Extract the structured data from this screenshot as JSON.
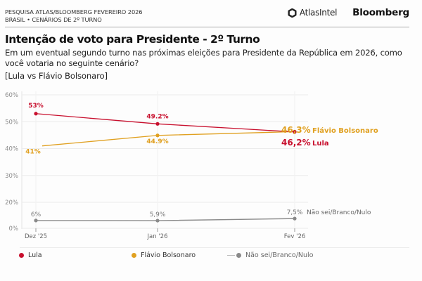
{
  "header": {
    "survey_line1": "PESQUISA ATLAS/BLOOMBERG FEVEREIRO 2026",
    "survey_line2": "BRASIL • CENÁRIOS DE 2º TURNO",
    "brand_atlas": "AtlasIntel",
    "brand_bloomberg": "Bloomberg"
  },
  "title": "Intenção de voto para Presidente - 2º Turno",
  "subtitle": "Em um eventual segundo turno nas próximas eleições para Presidente da República em 2026, como você votaria no seguinte cenário?",
  "scenario": "[Lula vs Flávio Bolsonaro]",
  "colors": {
    "lula": "#c8102e",
    "flavio": "#e0a020",
    "nulo": "#8a8a8a",
    "grid": "#ececec",
    "axis_text": "#8a8a8a"
  },
  "legend": [
    {
      "label": "Lula",
      "key": "lula"
    },
    {
      "label": "Flávio Bolsonaro",
      "key": "flavio"
    },
    {
      "label": "Não sei/Branco/Nulo",
      "key": "nulo"
    }
  ],
  "chart_data": {
    "type": "line",
    "title": "Intenção de voto para Presidente - 2º Turno",
    "x": [
      "Dez '25",
      "Jan '26",
      "Fev '26"
    ],
    "y_ticks": [
      "0%",
      "20%",
      "30%",
      "40%",
      "50%",
      "60%"
    ],
    "y_tick_values": [
      0,
      20,
      30,
      40,
      50,
      60
    ],
    "ylim": [
      0,
      60
    ],
    "y_axis_note": "broken axis: 0% then 20%–60%",
    "grid": true,
    "legend_position": "bottom",
    "series": [
      {
        "name": "Lula",
        "key": "lula",
        "values": [
          53,
          49.2,
          46.2
        ],
        "labels": [
          "53%",
          "49.2%",
          "46,2%"
        ],
        "end_label": "Lula"
      },
      {
        "name": "Flávio Bolsonaro",
        "key": "flavio",
        "values": [
          41,
          44.9,
          46.3
        ],
        "labels": [
          "41%",
          "44.9%",
          "46,3%"
        ],
        "end_label": "Flávio Bolsonaro"
      },
      {
        "name": "Não sei/Branco/Nulo",
        "key": "nulo",
        "values": [
          6,
          5.9,
          7.5
        ],
        "labels": [
          "6%",
          "5,9%",
          "7,5%"
        ],
        "end_label": "Não sei/Branco/Nulo"
      }
    ]
  }
}
